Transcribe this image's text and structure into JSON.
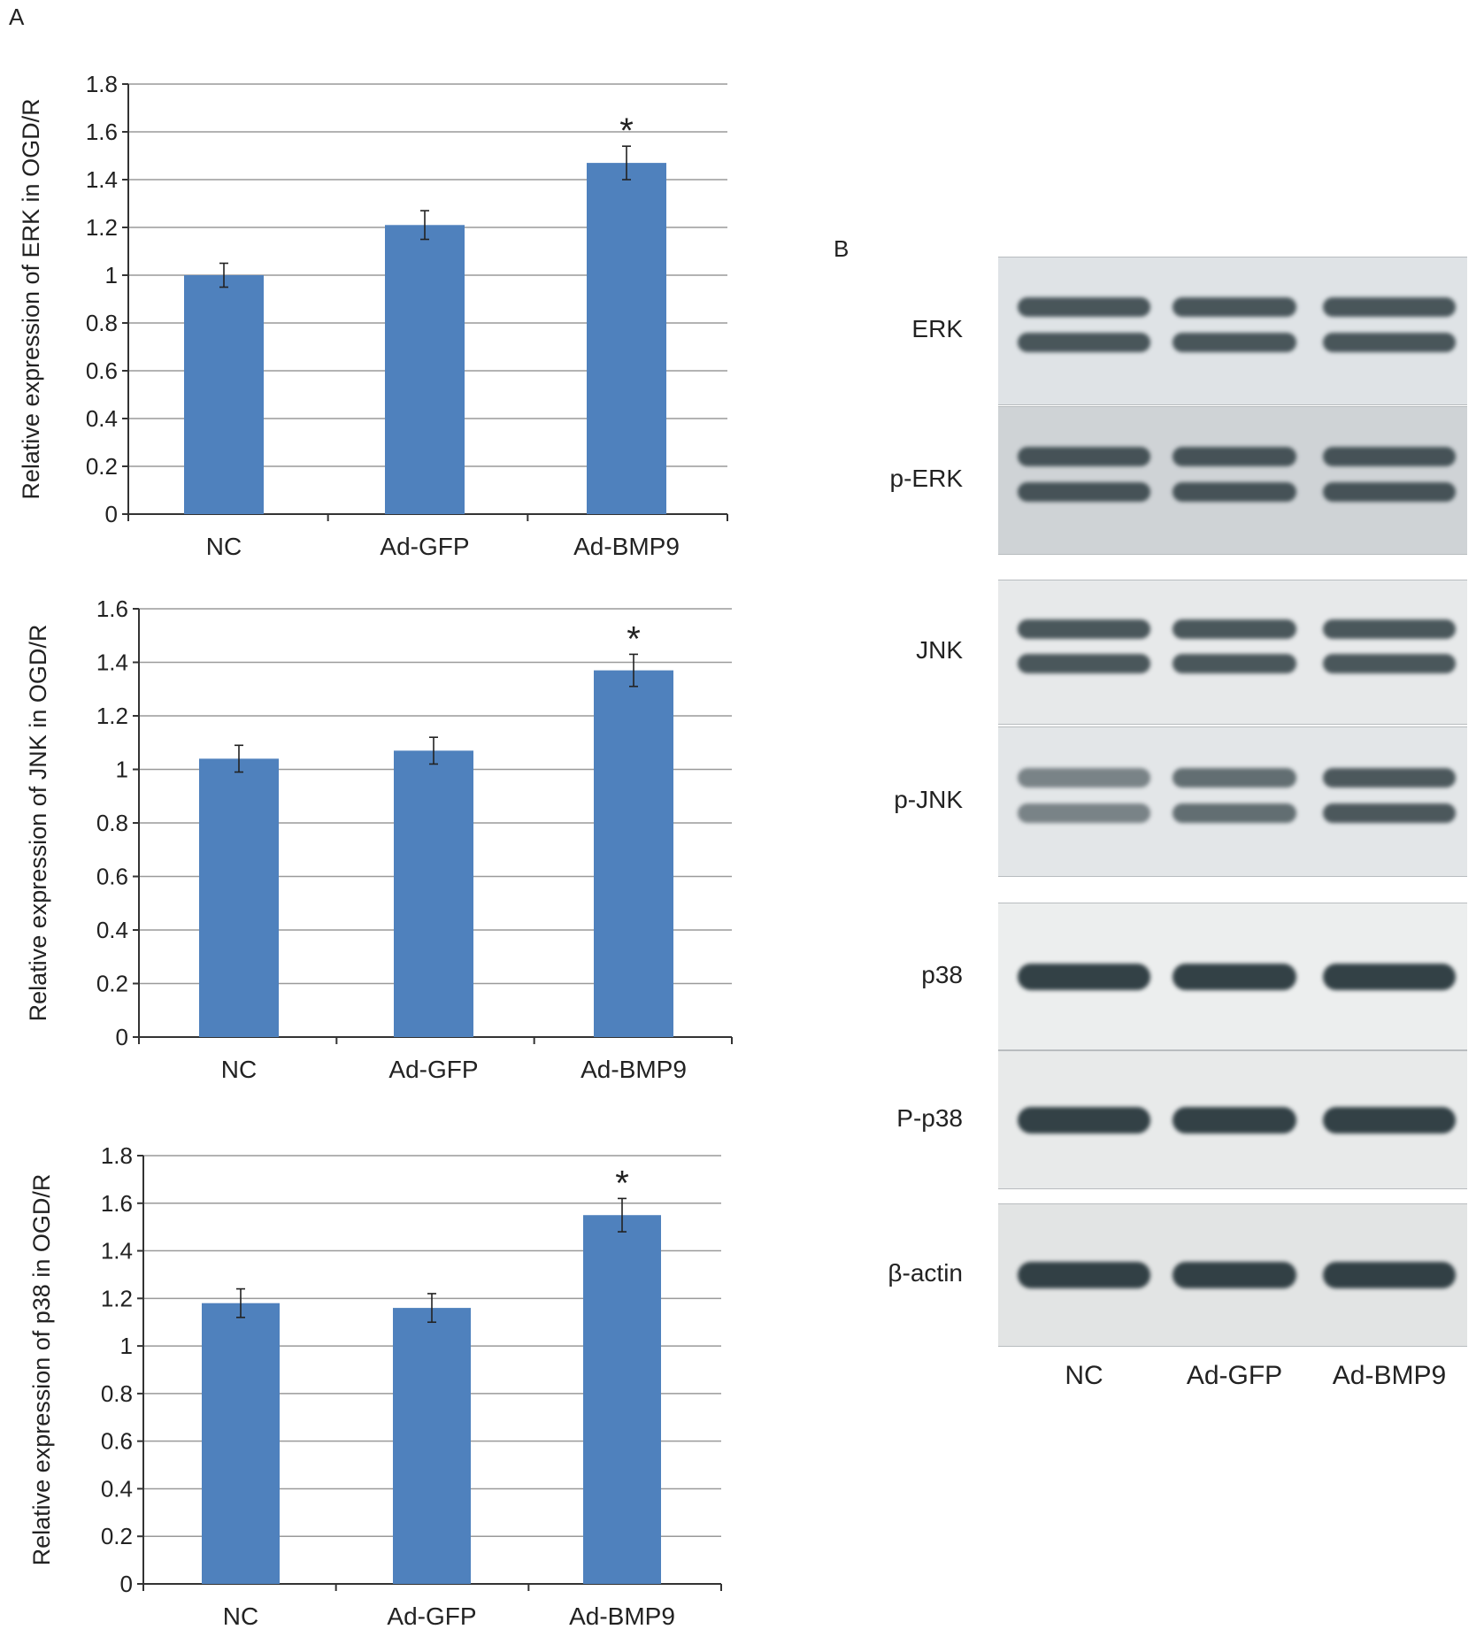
{
  "panels": {
    "a_label": "A",
    "b_label": "B"
  },
  "chart_data": [
    {
      "type": "bar",
      "categories": [
        "NC",
        "Ad-GFP",
        "Ad-BMP9"
      ],
      "values": [
        1.0,
        1.21,
        1.47
      ],
      "errors": [
        0.05,
        0.06,
        0.07
      ],
      "significance": [
        "",
        "",
        "*"
      ],
      "ylabel": "Relative expression of ERK in OGD/R",
      "ylim": [
        0,
        1.8
      ],
      "yticks": [
        0,
        0.2,
        0.4,
        0.6,
        0.8,
        1,
        1.2,
        1.4,
        1.6,
        1.8
      ],
      "color": "#4f81bd",
      "grid": true
    },
    {
      "type": "bar",
      "categories": [
        "NC",
        "Ad-GFP",
        "Ad-BMP9"
      ],
      "values": [
        1.04,
        1.07,
        1.37
      ],
      "errors": [
        0.05,
        0.05,
        0.06
      ],
      "significance": [
        "",
        "",
        "*"
      ],
      "ylabel": "Relative expression of JNK in OGD/R",
      "ylim": [
        0,
        1.6
      ],
      "yticks": [
        0,
        0.2,
        0.4,
        0.6,
        0.8,
        1,
        1.2,
        1.4,
        1.6
      ],
      "color": "#4f81bd",
      "grid": true
    },
    {
      "type": "bar",
      "categories": [
        "NC",
        "Ad-GFP",
        "Ad-BMP9"
      ],
      "values": [
        1.18,
        1.16,
        1.55
      ],
      "errors": [
        0.06,
        0.06,
        0.07
      ],
      "significance": [
        "",
        "",
        "*"
      ],
      "ylabel": "Relative expression of p38 in OGD/R",
      "ylim": [
        0,
        1.8
      ],
      "yticks": [
        0,
        0.2,
        0.4,
        0.6,
        0.8,
        1,
        1.2,
        1.4,
        1.6,
        1.8
      ],
      "color": "#4f81bd",
      "grid": true
    }
  ],
  "blot": {
    "rows": [
      {
        "label": "ERK",
        "group": 0
      },
      {
        "label": "p-ERK",
        "group": 0
      },
      {
        "label": "JNK",
        "group": 1
      },
      {
        "label": "p-JNK",
        "group": 1
      },
      {
        "label": "p38",
        "group": 2
      },
      {
        "label": "P-p38",
        "group": 2
      },
      {
        "label": "β-actin",
        "group": 3
      }
    ],
    "lanes": [
      "NC",
      "Ad-GFP",
      "Ad-BMP9"
    ]
  }
}
